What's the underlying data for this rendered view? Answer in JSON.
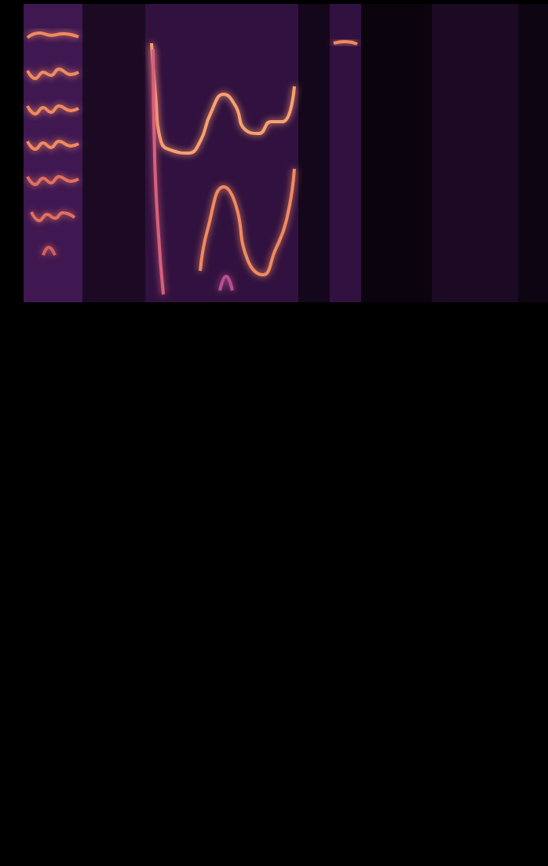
{
  "chart_data": {
    "type": "line",
    "xlim": [
      0,
      698
    ],
    "ylim": [
      0,
      1103
    ],
    "tick_labels": false,
    "grid": false,
    "energy": {
      "bins": [
        30,
        105,
        185,
        380,
        420,
        460,
        550,
        660,
        698
      ],
      "values": [
        0.45,
        0.2,
        0.35,
        0.15,
        0.35,
        0.08,
        0.2,
        0.1
      ],
      "range": [
        718,
        1098
      ]
    },
    "series": [
      {
        "color": "#f08a60",
        "values": [
          [
            35,
            1055
          ],
          [
            50,
            1061
          ],
          [
            65,
            1058
          ],
          [
            80,
            1060
          ],
          [
            100,
            1056
          ]
        ]
      },
      {
        "color": "#f08a60",
        "values": [
          [
            35,
            1013
          ],
          [
            45,
            1003
          ],
          [
            55,
            1011
          ],
          [
            65,
            1007
          ],
          [
            75,
            1015
          ],
          [
            90,
            1008
          ],
          [
            100,
            1011
          ]
        ]
      },
      {
        "color": "#f08a60",
        "values": [
          [
            35,
            968
          ],
          [
            45,
            958
          ],
          [
            55,
            966
          ],
          [
            65,
            960
          ],
          [
            75,
            968
          ],
          [
            90,
            962
          ],
          [
            100,
            965
          ]
        ]
      },
      {
        "color": "#f08a60",
        "values": [
          [
            35,
            923
          ],
          [
            45,
            913
          ],
          [
            55,
            921
          ],
          [
            65,
            915
          ],
          [
            75,
            923
          ],
          [
            90,
            917
          ],
          [
            100,
            920
          ]
        ]
      },
      {
        "color": "#e0705e",
        "values": [
          [
            35,
            878
          ],
          [
            45,
            868
          ],
          [
            55,
            876
          ],
          [
            65,
            870
          ],
          [
            75,
            878
          ],
          [
            90,
            872
          ],
          [
            100,
            875
          ]
        ]
      },
      {
        "color": "#e0705e",
        "values": [
          [
            40,
            833
          ],
          [
            50,
            822
          ],
          [
            60,
            830
          ],
          [
            70,
            825
          ],
          [
            80,
            832
          ],
          [
            95,
            826
          ]
        ]
      },
      {
        "color": "#d0605e",
        "values": [
          [
            55,
            778
          ],
          [
            62,
            788
          ],
          [
            70,
            778
          ]
        ]
      },
      {
        "color": "#f9a070",
        "values": [
          [
            193,
            1048
          ],
          [
            198,
            983
          ],
          [
            205,
            923
          ],
          [
            220,
            911
          ],
          [
            240,
            908
          ],
          [
            255,
            923
          ],
          [
            268,
            958
          ],
          [
            285,
            983
          ],
          [
            300,
            968
          ],
          [
            312,
            938
          ],
          [
            330,
            933
          ],
          [
            345,
            948
          ],
          [
            360,
            948
          ],
          [
            375,
            993
          ]
        ]
      },
      {
        "color": "#d8607a",
        "values": [
          [
            195,
            1040
          ],
          [
            197,
            903
          ],
          [
            202,
            803
          ],
          [
            208,
            728
          ]
        ]
      },
      {
        "color": "#f08a60",
        "values": [
          [
            255,
            758
          ],
          [
            265,
            813
          ],
          [
            285,
            865
          ],
          [
            300,
            843
          ],
          [
            315,
            773
          ],
          [
            335,
            753
          ],
          [
            350,
            783
          ],
          [
            365,
            823
          ],
          [
            375,
            888
          ]
        ]
      },
      {
        "color": "#b85090",
        "values": [
          [
            280,
            733
          ],
          [
            288,
            751
          ],
          [
            296,
            733
          ]
        ]
      },
      {
        "color": "#f08a60",
        "values": [
          [
            425,
            1048
          ],
          [
            440,
            1050
          ],
          [
            455,
            1047
          ]
        ]
      }
    ]
  }
}
